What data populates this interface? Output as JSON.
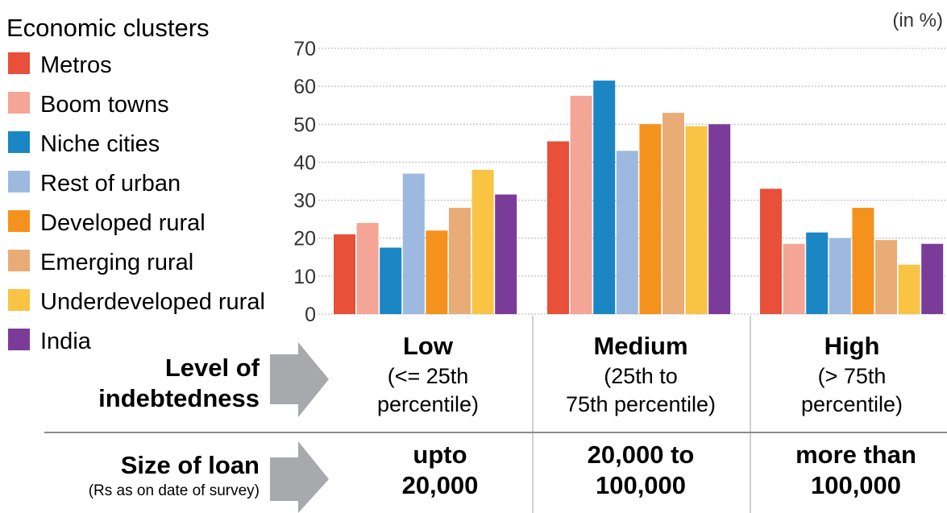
{
  "chart_data": {
    "type": "bar",
    "unit_label": "(in %)",
    "legend_title": "Economic clusters",
    "categories": [
      "Low",
      "Medium",
      "High"
    ],
    "ylim": [
      0,
      70
    ],
    "yticks": [
      0,
      10,
      20,
      30,
      40,
      50,
      60,
      70
    ],
    "grid": true,
    "legend_position": "left",
    "series": [
      {
        "name": "Metros",
        "color": "#e8503a",
        "values": [
          21,
          45.5,
          33
        ]
      },
      {
        "name": "Boom towns",
        "color": "#f4a595",
        "values": [
          24,
          57.5,
          18.5
        ]
      },
      {
        "name": "Niche cities",
        "color": "#1a87c4",
        "values": [
          17.5,
          61.5,
          21.5
        ]
      },
      {
        "name": "Rest of urban",
        "color": "#9db9e0",
        "values": [
          37,
          43,
          20
        ]
      },
      {
        "name": "Developed rural",
        "color": "#f5921e",
        "values": [
          22,
          50,
          28
        ]
      },
      {
        "name": "Emerging rural",
        "color": "#e9ac77",
        "values": [
          28,
          53,
          19.5
        ]
      },
      {
        "name": "Underdeveloped rural",
        "color": "#f9c344",
        "values": [
          38,
          49.5,
          13
        ]
      },
      {
        "name": "India",
        "color": "#7b3c99",
        "values": [
          31.5,
          50,
          18.5
        ]
      }
    ]
  },
  "level_row": {
    "title_line1": "Level of",
    "title_line2": "indebtedness",
    "groups": [
      {
        "name": "Low",
        "desc_line1": "(<= 25th",
        "desc_line2": "percentile)"
      },
      {
        "name": "Medium",
        "desc_line1": "(25th to",
        "desc_line2": "75th percentile)"
      },
      {
        "name": "High",
        "desc_line1": "(> 75th",
        "desc_line2": "percentile)"
      }
    ]
  },
  "loan_row": {
    "title": "Size of loan",
    "subtitle": "(Rs as on date of survey)",
    "groups": [
      {
        "line1": "upto",
        "line2": "20,000"
      },
      {
        "line1": "20,000 to",
        "line2": "100,000"
      },
      {
        "line1": "more than",
        "line2": "100,000"
      }
    ]
  },
  "colors": {
    "arrow": "#a7a9ac",
    "grid": "#b3b3b3",
    "divider": "#bfbfbf",
    "text": "#231f20"
  }
}
